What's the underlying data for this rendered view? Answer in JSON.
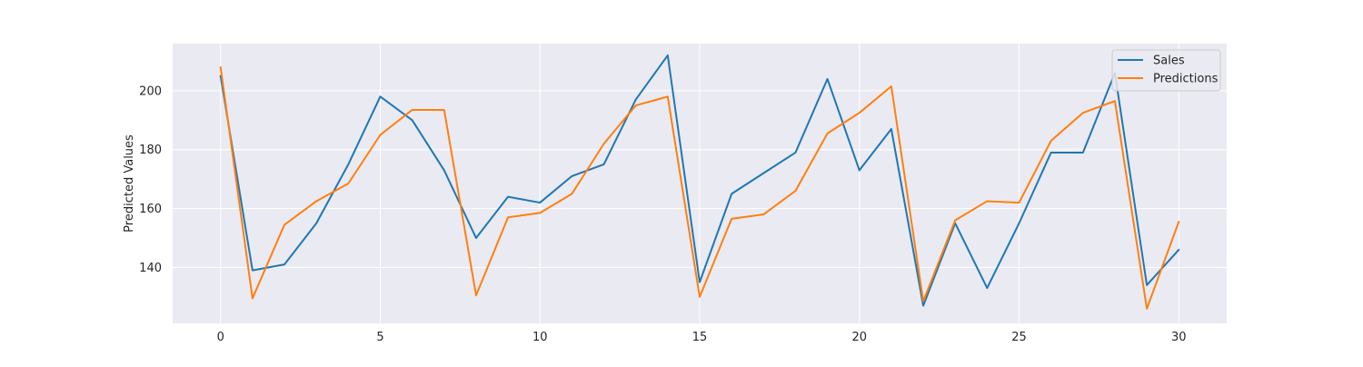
{
  "chart_data": {
    "type": "line",
    "title": "",
    "xlabel": "",
    "ylabel": "Predicted Values",
    "x": [
      0,
      1,
      2,
      3,
      4,
      5,
      6,
      7,
      8,
      9,
      10,
      11,
      12,
      13,
      14,
      15,
      16,
      17,
      18,
      19,
      20,
      21,
      22,
      23,
      24,
      25,
      26,
      27,
      28,
      29,
      30
    ],
    "xlim": [
      -1.5,
      31.5
    ],
    "ylim": [
      121,
      216
    ],
    "xticks": [
      0,
      5,
      10,
      15,
      20,
      25,
      30
    ],
    "yticks": [
      140,
      160,
      180,
      200
    ],
    "grid": true,
    "legend_position": "top-right",
    "series": [
      {
        "name": "Sales",
        "color": "#1f77b4",
        "values": [
          205,
          139,
          141,
          155,
          175,
          198,
          190,
          173,
          150,
          164,
          162,
          171,
          175,
          197,
          212,
          135,
          165,
          172,
          179,
          204,
          173,
          187,
          127,
          155,
          133,
          155,
          179,
          179,
          206,
          134,
          146
        ]
      },
      {
        "name": "Predictions",
        "color": "#ff7f0e",
        "values": [
          208,
          129.5,
          154.5,
          162.5,
          168.5,
          185,
          193.5,
          193.5,
          130.5,
          157,
          158.5,
          165,
          182,
          195,
          198,
          130,
          156.5,
          158,
          166,
          185.5,
          192.5,
          201.5,
          128.5,
          156,
          162.5,
          162,
          183,
          192.5,
          196.5,
          126,
          155.5
        ]
      }
    ]
  }
}
